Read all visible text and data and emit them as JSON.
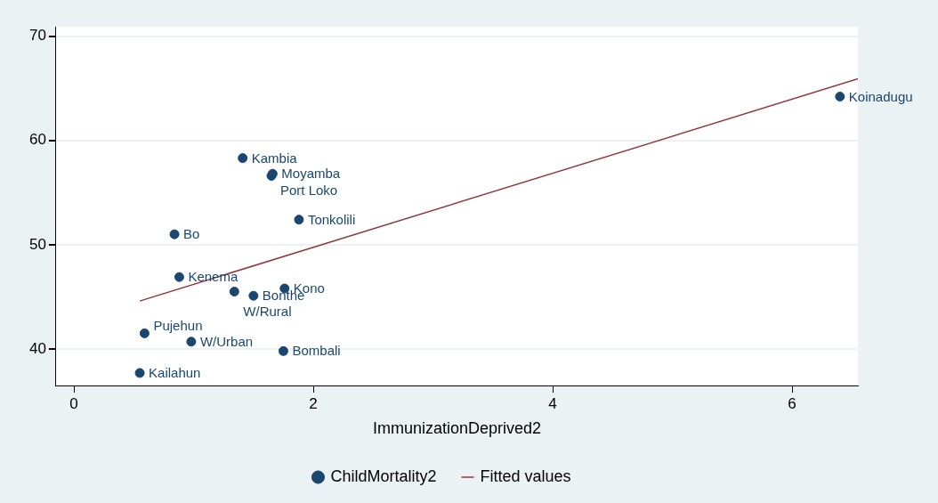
{
  "chart_data": {
    "type": "scatter",
    "xlabel": "ImmunizationDeprived2",
    "xlim": [
      -0.15,
      6.55
    ],
    "xticks": [
      0,
      2,
      4,
      6
    ],
    "ylim": [
      36.5,
      70.9
    ],
    "yticks": [
      40,
      50,
      60,
      70
    ],
    "grid": "y",
    "legend": "bottom",
    "marker": "circle",
    "x": [
      6.4,
      1.41,
      1.66,
      1.65,
      1.88,
      0.84,
      0.88,
      1.76,
      1.34,
      1.5,
      0.59,
      0.98,
      1.75,
      0.55
    ],
    "series": [
      {
        "name": "ChildMortality2",
        "color": "#1a476f",
        "values": [
          64.2,
          58.3,
          56.8,
          56.6,
          52.4,
          51.0,
          46.9,
          45.8,
          45.5,
          45.1,
          41.5,
          40.7,
          39.8,
          37.7
        ]
      },
      {
        "name": "Fitted values",
        "type": "line",
        "color": "#90353b",
        "marker": "none",
        "x": [
          0.55,
          6.55
        ],
        "values": [
          44.6,
          65.9
        ]
      }
    ],
    "annotations": [
      {
        "text": "Koinadugu",
        "x": 6.4,
        "y": 64.2
      },
      {
        "text": "Kambia",
        "x": 1.41,
        "y": 58.3
      },
      {
        "text": "Moyamba",
        "x": 1.66,
        "y": 56.8
      },
      {
        "text": "Port Loko",
        "x": 1.65,
        "y": 56.6
      },
      {
        "text": "Tonkolili",
        "x": 1.88,
        "y": 52.4
      },
      {
        "text": "Bo",
        "x": 0.84,
        "y": 51.0
      },
      {
        "text": "Kenema",
        "x": 0.88,
        "y": 46.9
      },
      {
        "text": "Kono",
        "x": 1.76,
        "y": 45.8
      },
      {
        "text": "W/Rural",
        "x": 1.34,
        "y": 45.5
      },
      {
        "text": "Bonthe",
        "x": 1.5,
        "y": 45.1
      },
      {
        "text": "Pujehun",
        "x": 0.59,
        "y": 41.5
      },
      {
        "text": "W/Urban",
        "x": 0.98,
        "y": 40.7
      },
      {
        "text": "Bombali",
        "x": 1.75,
        "y": 39.8
      },
      {
        "text": "Kailahun",
        "x": 0.55,
        "y": 37.7
      }
    ]
  }
}
